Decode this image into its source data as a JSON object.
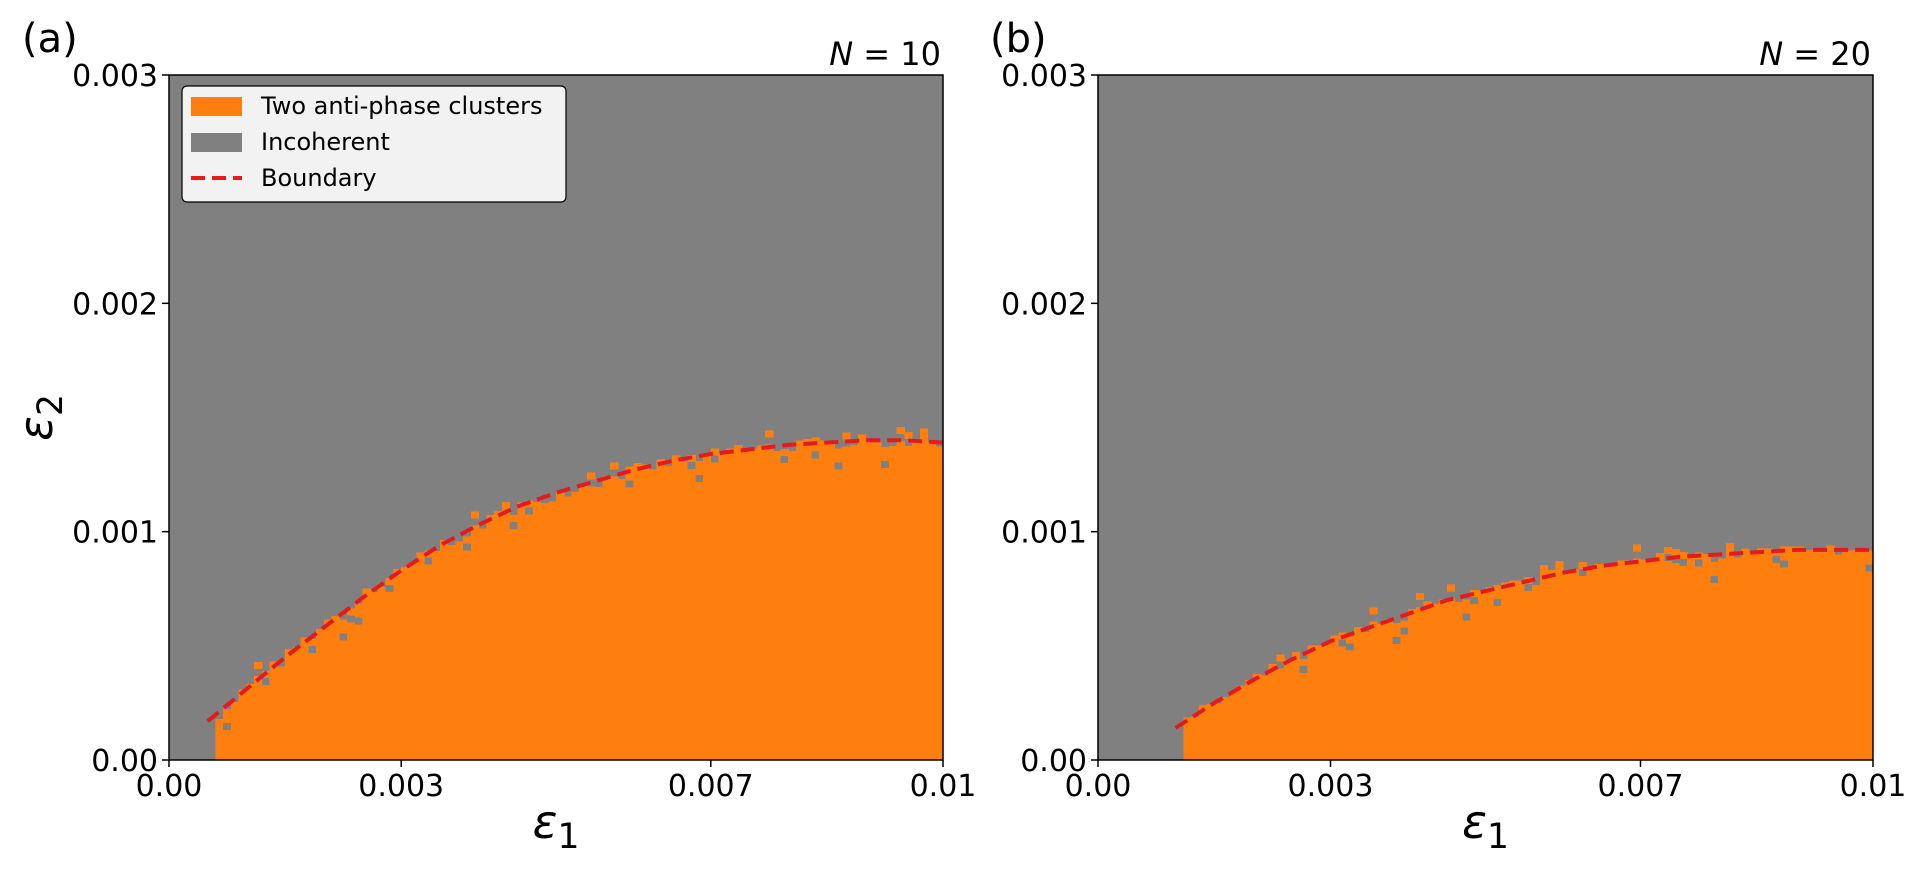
{
  "colors": {
    "ordered": "#ff7f0e",
    "incoherent": "#808080",
    "boundary": "#e41a1c",
    "legend_bg": "#f2f2f2"
  },
  "legend": {
    "items": [
      {
        "label": "Two anti-phase clusters",
        "kind": "patch",
        "color": "#ff7f0e"
      },
      {
        "label": "Incoherent",
        "kind": "patch",
        "color": "#808080"
      },
      {
        "label": "Boundary",
        "kind": "dashed-line",
        "color": "#e41a1c"
      }
    ]
  },
  "chart_data": [
    {
      "type": "heatmap",
      "panel_label": "(a)",
      "title": "N = 10",
      "xlabel": "ε1",
      "ylabel": "ε2",
      "xlim": [
        0.0,
        0.01
      ],
      "ylim": [
        0.0,
        0.003
      ],
      "xticks": [
        0.0,
        0.003,
        0.007,
        0.01
      ],
      "xtick_labels": [
        "0.00",
        "0.003",
        "0.007",
        "0.01"
      ],
      "yticks": [
        0.0,
        0.001,
        0.002,
        0.003
      ],
      "ytick_labels": [
        "0.00",
        "0.001",
        "0.002",
        "0.003"
      ],
      "grid": false,
      "legend_position": "upper-left",
      "regions": [
        "Two anti-phase clusters (below boundary)",
        "Incoherent (above boundary)"
      ],
      "boundary": {
        "x": [
          0.0005,
          0.001,
          0.0015,
          0.002,
          0.0025,
          0.003,
          0.0035,
          0.004,
          0.0045,
          0.005,
          0.0055,
          0.006,
          0.0065,
          0.007,
          0.0075,
          0.008,
          0.0085,
          0.009,
          0.0095,
          0.01
        ],
        "y": [
          0.00017,
          0.00031,
          0.00045,
          0.00058,
          0.00071,
          0.00083,
          0.00094,
          0.00103,
          0.00111,
          0.00117,
          0.00122,
          0.00127,
          0.00131,
          0.00134,
          0.00136,
          0.00138,
          0.00139,
          0.0014,
          0.0014,
          0.00139
        ]
      }
    },
    {
      "type": "heatmap",
      "panel_label": "(b)",
      "title": "N = 20",
      "xlabel": "ε1",
      "ylabel": "",
      "xlim": [
        0.0,
        0.01
      ],
      "ylim": [
        0.0,
        0.003
      ],
      "xticks": [
        0.0,
        0.003,
        0.007,
        0.01
      ],
      "xtick_labels": [
        "0.00",
        "0.003",
        "0.007",
        "0.01"
      ],
      "yticks": [
        0.0,
        0.001,
        0.002,
        0.003
      ],
      "ytick_labels": [
        "0.00",
        "0.001",
        "0.002",
        "0.003"
      ],
      "grid": false,
      "regions": [
        "Two anti-phase clusters (below boundary)",
        "Incoherent (above boundary)"
      ],
      "boundary": {
        "x": [
          0.001,
          0.0015,
          0.002,
          0.0025,
          0.003,
          0.0035,
          0.004,
          0.0045,
          0.005,
          0.0055,
          0.006,
          0.0065,
          0.007,
          0.0075,
          0.008,
          0.0085,
          0.009,
          0.0095,
          0.01
        ],
        "y": [
          0.00014,
          0.00025,
          0.00035,
          0.00044,
          0.00052,
          0.00058,
          0.00064,
          0.0007,
          0.00074,
          0.00078,
          0.00082,
          0.00085,
          0.00087,
          0.00089,
          0.0009,
          0.00091,
          0.00092,
          0.00092,
          0.00092
        ]
      }
    }
  ]
}
